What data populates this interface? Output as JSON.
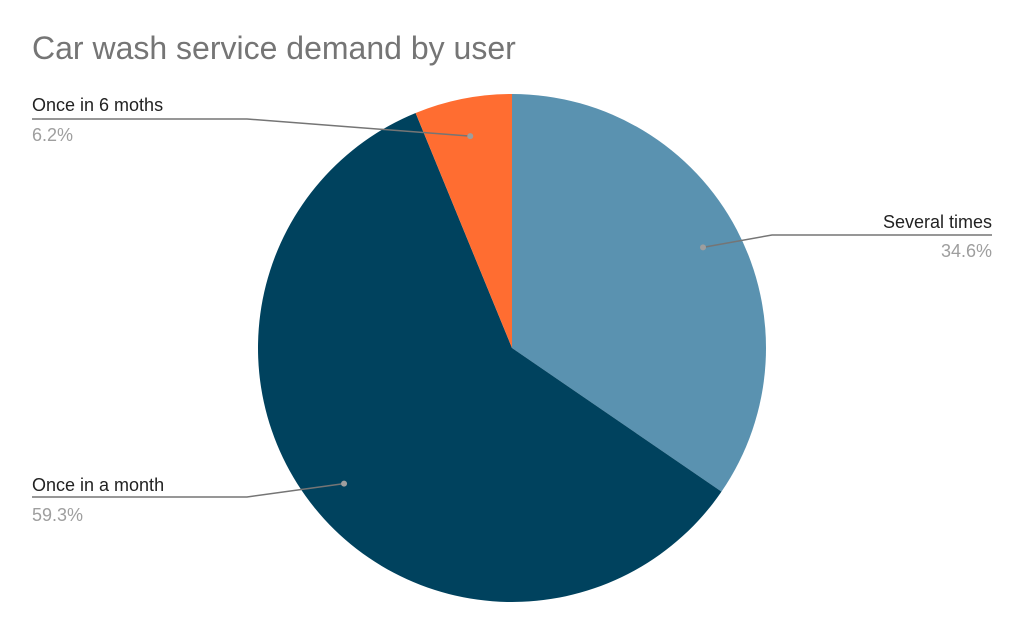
{
  "chart_data": {
    "type": "pie",
    "title": "Car wash service demand by user",
    "slices": [
      {
        "label": "Several times",
        "value": 34.6,
        "display": "34.6%",
        "color": "#5a92b0"
      },
      {
        "label": "Once in a month",
        "value": 59.3,
        "display": "59.3%",
        "color": "#00425e"
      },
      {
        "label": "Once in 6 moths",
        "value": 6.2,
        "display": "6.2%",
        "color": "#ff6d31"
      }
    ],
    "start_angle_deg": 0,
    "direction": "clockwise",
    "legend": "none",
    "label_style": "callout lines with name and percentage"
  }
}
